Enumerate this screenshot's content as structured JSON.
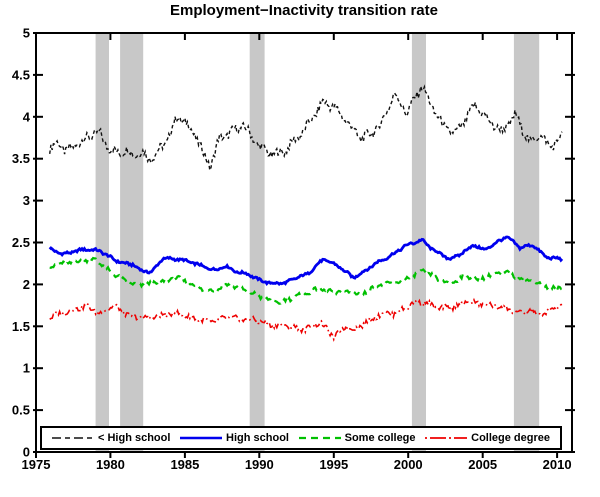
{
  "chart_data": {
    "type": "line",
    "title": "Employment−Inactivity transition rate",
    "xlabel": "",
    "ylabel": "",
    "grid": false,
    "legend_position": "bottom-inside-horizontal",
    "xlim": [
      1975,
      2011
    ],
    "ylim": [
      0,
      5
    ],
    "x_ticks": [
      1975,
      1980,
      1985,
      1990,
      1995,
      2000,
      2005,
      2010
    ],
    "y_ticks": [
      0,
      0.5,
      1,
      1.5,
      2,
      2.5,
      3,
      3.5,
      4,
      4.5,
      5
    ],
    "y_tick_labels": [
      "0",
      "0.5",
      "1",
      "1.5",
      "2",
      "2.5",
      "3",
      "3.5",
      "4",
      "4.5",
      "5"
    ],
    "band_color": "#c8c8c8",
    "recession_bands": [
      [
        1979.0,
        1979.9
      ],
      [
        1980.65,
        1982.2
      ],
      [
        1989.35,
        1990.35
      ],
      [
        2000.25,
        2001.2
      ],
      [
        2007.1,
        2008.8
      ]
    ],
    "series": [
      {
        "name": "< High school",
        "color": "#111111",
        "style": "dashed",
        "points": [
          [
            1976.0,
            3.62
          ],
          [
            1976.5,
            3.7
          ],
          [
            1977.0,
            3.58
          ],
          [
            1977.6,
            3.66
          ],
          [
            1978.2,
            3.72
          ],
          [
            1978.8,
            3.8
          ],
          [
            1979.3,
            3.8
          ],
          [
            1979.9,
            3.62
          ],
          [
            1980.5,
            3.57
          ],
          [
            1981.0,
            3.6
          ],
          [
            1981.6,
            3.55
          ],
          [
            1982.1,
            3.58
          ],
          [
            1982.6,
            3.5
          ],
          [
            1983.1,
            3.56
          ],
          [
            1983.8,
            3.72
          ],
          [
            1984.5,
            4.0
          ],
          [
            1985.0,
            3.94
          ],
          [
            1985.7,
            3.78
          ],
          [
            1986.2,
            3.58
          ],
          [
            1986.7,
            3.4
          ],
          [
            1987.3,
            3.74
          ],
          [
            1988.0,
            3.8
          ],
          [
            1988.9,
            3.9
          ],
          [
            1989.5,
            3.76
          ],
          [
            1990.2,
            3.62
          ],
          [
            1990.9,
            3.55
          ],
          [
            1991.6,
            3.58
          ],
          [
            1992.3,
            3.7
          ],
          [
            1993.1,
            3.86
          ],
          [
            1994.3,
            4.18
          ],
          [
            1995.0,
            4.12
          ],
          [
            1995.8,
            3.96
          ],
          [
            1996.8,
            3.74
          ],
          [
            1997.5,
            3.8
          ],
          [
            1998.2,
            3.92
          ],
          [
            1999.1,
            4.28
          ],
          [
            1999.9,
            4.04
          ],
          [
            2000.9,
            4.37
          ],
          [
            2001.6,
            4.12
          ],
          [
            2002.4,
            3.88
          ],
          [
            2003.2,
            3.8
          ],
          [
            2004.5,
            4.14
          ],
          [
            2005.5,
            3.94
          ],
          [
            2006.3,
            3.82
          ],
          [
            2007.2,
            4.02
          ],
          [
            2008.2,
            3.68
          ],
          [
            2008.8,
            3.8
          ],
          [
            2009.5,
            3.64
          ],
          [
            2010.3,
            3.76
          ]
        ]
      },
      {
        "name": "High school",
        "color": "#0000ee",
        "style": "solid",
        "points": [
          [
            1976.0,
            2.42
          ],
          [
            1976.8,
            2.36
          ],
          [
            1977.5,
            2.39
          ],
          [
            1978.3,
            2.42
          ],
          [
            1979.3,
            2.4
          ],
          [
            1980.2,
            2.3
          ],
          [
            1980.9,
            2.25
          ],
          [
            1981.5,
            2.24
          ],
          [
            1982.1,
            2.16
          ],
          [
            1982.8,
            2.15
          ],
          [
            1983.5,
            2.31
          ],
          [
            1984.6,
            2.3
          ],
          [
            1985.5,
            2.26
          ],
          [
            1986.3,
            2.21
          ],
          [
            1987.0,
            2.17
          ],
          [
            1987.7,
            2.22
          ],
          [
            1988.5,
            2.15
          ],
          [
            1989.3,
            2.12
          ],
          [
            1990.0,
            2.05
          ],
          [
            1990.9,
            2.01
          ],
          [
            1991.8,
            2.02
          ],
          [
            1992.5,
            2.08
          ],
          [
            1993.2,
            2.12
          ],
          [
            1994.3,
            2.3
          ],
          [
            1995.3,
            2.22
          ],
          [
            1996.3,
            2.08
          ],
          [
            1997.0,
            2.15
          ],
          [
            1997.8,
            2.25
          ],
          [
            1998.9,
            2.35
          ],
          [
            1999.8,
            2.46
          ],
          [
            2000.9,
            2.53
          ],
          [
            2001.7,
            2.41
          ],
          [
            2002.8,
            2.3
          ],
          [
            2003.5,
            2.36
          ],
          [
            2004.4,
            2.47
          ],
          [
            2005.1,
            2.41
          ],
          [
            2006.6,
            2.57
          ],
          [
            2007.5,
            2.44
          ],
          [
            2008.4,
            2.47
          ],
          [
            2009.2,
            2.33
          ],
          [
            2010.3,
            2.3
          ]
        ]
      },
      {
        "name": "Some college",
        "color": "#00c000",
        "style": "dashed-long",
        "points": [
          [
            1976.0,
            2.22
          ],
          [
            1977.0,
            2.25
          ],
          [
            1978.0,
            2.28
          ],
          [
            1979.0,
            2.3
          ],
          [
            1980.0,
            2.15
          ],
          [
            1980.9,
            2.05
          ],
          [
            1981.7,
            1.99
          ],
          [
            1982.5,
            2.0
          ],
          [
            1983.2,
            2.02
          ],
          [
            1984.4,
            2.08
          ],
          [
            1985.2,
            2.03
          ],
          [
            1986.2,
            1.94
          ],
          [
            1987.0,
            1.93
          ],
          [
            1987.8,
            2.0
          ],
          [
            1988.8,
            1.95
          ],
          [
            1989.8,
            1.87
          ],
          [
            1990.8,
            1.8
          ],
          [
            1991.3,
            1.78
          ],
          [
            1992.4,
            1.85
          ],
          [
            1993.2,
            1.89
          ],
          [
            1994.0,
            1.95
          ],
          [
            1995.0,
            1.91
          ],
          [
            1996.0,
            1.91
          ],
          [
            1996.8,
            1.88
          ],
          [
            1998.0,
            1.99
          ],
          [
            1999.0,
            2.01
          ],
          [
            1999.9,
            2.07
          ],
          [
            2001.0,
            2.16
          ],
          [
            2001.9,
            2.07
          ],
          [
            2002.8,
            2.01
          ],
          [
            2003.9,
            2.11
          ],
          [
            2004.6,
            2.05
          ],
          [
            2005.5,
            2.11
          ],
          [
            2006.4,
            2.15
          ],
          [
            2007.3,
            2.09
          ],
          [
            2008.2,
            2.05
          ],
          [
            2009.1,
            1.99
          ],
          [
            2009.7,
            1.95
          ],
          [
            2010.3,
            1.97
          ]
        ]
      },
      {
        "name": "College degree",
        "color": "#ee0000",
        "style": "dash-dot",
        "points": [
          [
            1976.0,
            1.61
          ],
          [
            1976.6,
            1.65
          ],
          [
            1977.3,
            1.69
          ],
          [
            1978.4,
            1.74
          ],
          [
            1979.3,
            1.65
          ],
          [
            1980.2,
            1.75
          ],
          [
            1981.3,
            1.62
          ],
          [
            1982.3,
            1.6
          ],
          [
            1983.3,
            1.62
          ],
          [
            1984.3,
            1.66
          ],
          [
            1985.3,
            1.61
          ],
          [
            1986.3,
            1.57
          ],
          [
            1987.0,
            1.55
          ],
          [
            1987.8,
            1.61
          ],
          [
            1988.8,
            1.58
          ],
          [
            1989.7,
            1.58
          ],
          [
            1990.7,
            1.52
          ],
          [
            1991.8,
            1.5
          ],
          [
            1993.0,
            1.46
          ],
          [
            1994.1,
            1.55
          ],
          [
            1995.0,
            1.37
          ],
          [
            1995.8,
            1.5
          ],
          [
            1996.4,
            1.46
          ],
          [
            1997.1,
            1.54
          ],
          [
            1998.3,
            1.66
          ],
          [
            1999.0,
            1.65
          ],
          [
            1999.6,
            1.7
          ],
          [
            2000.5,
            1.79
          ],
          [
            2001.2,
            1.78
          ],
          [
            2002.1,
            1.71
          ],
          [
            2003.0,
            1.73
          ],
          [
            2003.9,
            1.79
          ],
          [
            2004.8,
            1.77
          ],
          [
            2005.5,
            1.75
          ],
          [
            2006.4,
            1.73
          ],
          [
            2007.5,
            1.65
          ],
          [
            2008.2,
            1.69
          ],
          [
            2008.9,
            1.63
          ],
          [
            2009.8,
            1.71
          ],
          [
            2010.3,
            1.75
          ]
        ]
      }
    ]
  }
}
